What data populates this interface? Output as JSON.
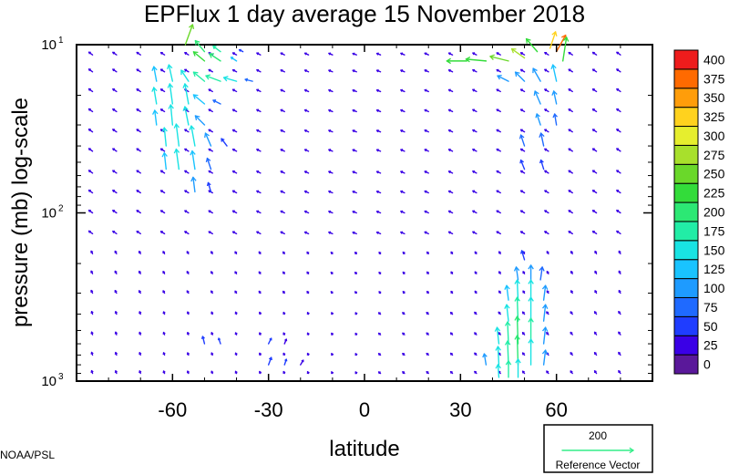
{
  "chart_data": {
    "type": "vector",
    "title": "EPFlux  1 day average  15 November 2018",
    "xlabel": "latitude",
    "ylabel": "pressure (mb)  log-scale",
    "xlim": [
      -90,
      90
    ],
    "ylim": [
      1000,
      10
    ],
    "yscale": "log",
    "x_ticks": [
      {
        "value": -60,
        "label": "-60"
      },
      {
        "value": -30,
        "label": "-30"
      },
      {
        "value": 0,
        "label": "0"
      },
      {
        "value": 30,
        "label": "30"
      },
      {
        "value": 60,
        "label": "60"
      }
    ],
    "y_ticks": [
      {
        "value": 10,
        "base": "10",
        "exp": "1"
      },
      {
        "value": 100,
        "base": "10",
        "exp": "2"
      },
      {
        "value": 1000,
        "base": "10",
        "exp": "3"
      }
    ],
    "colorbar": {
      "levels": [
        "0",
        "25",
        "50",
        "75",
        "100",
        "125",
        "150",
        "175",
        "200",
        "225",
        "250",
        "275",
        "300",
        "325",
        "350",
        "375",
        "400"
      ],
      "colors": [
        "#5a189a",
        "#3a00e6",
        "#1f3dff",
        "#1f6aff",
        "#1e9bff",
        "#19c3ff",
        "#19e3e3",
        "#22eda6",
        "#2ce874",
        "#33dc3a",
        "#6ad82a",
        "#a8e02c",
        "#e6ee2e",
        "#ffd21e",
        "#ff9d0a",
        "#ff6a00",
        "#ee1c1c"
      ]
    },
    "reference_vector": {
      "magnitude": "200",
      "label": "Reference Vector",
      "color": "#33ee88"
    },
    "grid": false,
    "vectors": [
      {
        "lat": -56,
        "p": 10,
        "u": 8,
        "v": 22,
        "mag": 250
      },
      {
        "lat": -50,
        "p": 11,
        "u": -10,
        "v": 12,
        "mag": 220
      },
      {
        "lat": -45,
        "p": 11,
        "u": -8,
        "v": 6,
        "mag": 190
      },
      {
        "lat": -38,
        "p": 11,
        "u": -4,
        "v": 2,
        "mag": 70
      },
      {
        "lat": -50,
        "p": 12.5,
        "u": -12,
        "v": 10,
        "mag": 240
      },
      {
        "lat": -45,
        "p": 12.5,
        "u": -12,
        "v": 8,
        "mag": 220
      },
      {
        "lat": -40,
        "p": 12.5,
        "u": -6,
        "v": 4,
        "mag": 130
      },
      {
        "lat": 32,
        "p": 12.5,
        "u": -22,
        "v": 0,
        "mag": 230
      },
      {
        "lat": 38,
        "p": 12.5,
        "u": -22,
        "v": 2,
        "mag": 240
      },
      {
        "lat": 45,
        "p": 12.5,
        "u": -20,
        "v": 5,
        "mag": 260
      },
      {
        "lat": 50,
        "p": 12,
        "u": -14,
        "v": 10,
        "mag": 280
      },
      {
        "lat": 54,
        "p": 11,
        "u": -12,
        "v": 14,
        "mag": 230
      },
      {
        "lat": 58,
        "p": 10.5,
        "u": 6,
        "v": 18,
        "mag": 330
      },
      {
        "lat": 60,
        "p": 11,
        "u": 10,
        "v": 18,
        "mag": 380
      },
      {
        "lat": 62,
        "p": 12.5,
        "u": 4,
        "v": 26,
        "mag": 240
      },
      {
        "lat": -65,
        "p": 16.5,
        "u": -3,
        "v": 16,
        "mag": 140
      },
      {
        "lat": -60,
        "p": 16.5,
        "u": -4,
        "v": 18,
        "mag": 150
      },
      {
        "lat": -55,
        "p": 16.5,
        "u": -8,
        "v": 12,
        "mag": 170
      },
      {
        "lat": -50,
        "p": 16.5,
        "u": -12,
        "v": 10,
        "mag": 190
      },
      {
        "lat": -45,
        "p": 16.5,
        "u": -16,
        "v": 6,
        "mag": 180
      },
      {
        "lat": -40,
        "p": 16.5,
        "u": -14,
        "v": 4,
        "mag": 150
      },
      {
        "lat": -35,
        "p": 16.5,
        "u": -8,
        "v": 2,
        "mag": 80
      },
      {
        "lat": 45,
        "p": 16.5,
        "u": -12,
        "v": 6,
        "mag": 100
      },
      {
        "lat": 50,
        "p": 16.5,
        "u": -10,
        "v": 10,
        "mag": 110
      },
      {
        "lat": 55,
        "p": 16.5,
        "u": -8,
        "v": 14,
        "mag": 120
      },
      {
        "lat": 60,
        "p": 16.5,
        "u": -4,
        "v": 18,
        "mag": 140
      },
      {
        "lat": -65,
        "p": 22.5,
        "u": -3,
        "v": 18,
        "mag": 150
      },
      {
        "lat": -60,
        "p": 22.5,
        "u": -3,
        "v": 22,
        "mag": 160
      },
      {
        "lat": -55,
        "p": 22.5,
        "u": -4,
        "v": 22,
        "mag": 170
      },
      {
        "lat": -50,
        "p": 22.5,
        "u": -12,
        "v": 10,
        "mag": 130
      },
      {
        "lat": -45,
        "p": 22.5,
        "u": -8,
        "v": 4,
        "mag": 90
      },
      {
        "lat": 55,
        "p": 22.5,
        "u": -6,
        "v": 14,
        "mag": 110
      },
      {
        "lat": 60,
        "p": 22.5,
        "u": -3,
        "v": 14,
        "mag": 100
      },
      {
        "lat": -65,
        "p": 30,
        "u": -2,
        "v": 16,
        "mag": 140
      },
      {
        "lat": -60,
        "p": 30,
        "u": -2,
        "v": 22,
        "mag": 160
      },
      {
        "lat": -55,
        "p": 30,
        "u": -4,
        "v": 20,
        "mag": 170
      },
      {
        "lat": -50,
        "p": 30,
        "u": -10,
        "v": 10,
        "mag": 120
      },
      {
        "lat": 55,
        "p": 30,
        "u": -4,
        "v": 12,
        "mag": 100
      },
      {
        "lat": 60,
        "p": 30,
        "u": -2,
        "v": 12,
        "mag": 90
      },
      {
        "lat": -62,
        "p": 40,
        "u": -2,
        "v": 20,
        "mag": 150
      },
      {
        "lat": -58,
        "p": 40,
        "u": -3,
        "v": 24,
        "mag": 170
      },
      {
        "lat": -53,
        "p": 40,
        "u": -4,
        "v": 22,
        "mag": 160
      },
      {
        "lat": -48,
        "p": 40,
        "u": -6,
        "v": 14,
        "mag": 110
      },
      {
        "lat": -43,
        "p": 40,
        "u": -6,
        "v": 8,
        "mag": 70
      },
      {
        "lat": 50,
        "p": 40,
        "u": -4,
        "v": 12,
        "mag": 90
      },
      {
        "lat": 56,
        "p": 40,
        "u": -3,
        "v": 14,
        "mag": 90
      },
      {
        "lat": -62,
        "p": 55,
        "u": -2,
        "v": 18,
        "mag": 130
      },
      {
        "lat": -58,
        "p": 55,
        "u": -3,
        "v": 22,
        "mag": 160
      },
      {
        "lat": -53,
        "p": 55,
        "u": -3,
        "v": 20,
        "mag": 140
      },
      {
        "lat": -48,
        "p": 55,
        "u": -4,
        "v": 12,
        "mag": 90
      },
      {
        "lat": 50,
        "p": 55,
        "u": -4,
        "v": 10,
        "mag": 70
      },
      {
        "lat": 56,
        "p": 55,
        "u": -3,
        "v": 10,
        "mag": 70
      },
      {
        "lat": -53,
        "p": 75,
        "u": -2,
        "v": 16,
        "mag": 100
      },
      {
        "lat": -48,
        "p": 75,
        "u": -3,
        "v": 10,
        "mag": 70
      },
      {
        "lat": 50,
        "p": 190,
        "u": -3,
        "v": 10,
        "mag": 60
      },
      {
        "lat": 48,
        "p": 250,
        "u": -2,
        "v": 14,
        "mag": 100
      },
      {
        "lat": 52,
        "p": 250,
        "u": 0,
        "v": 16,
        "mag": 110
      },
      {
        "lat": 55,
        "p": 250,
        "u": 2,
        "v": 14,
        "mag": 90
      },
      {
        "lat": 45,
        "p": 330,
        "u": -2,
        "v": 16,
        "mag": 130
      },
      {
        "lat": 48,
        "p": 330,
        "u": -1,
        "v": 22,
        "mag": 160
      },
      {
        "lat": 52,
        "p": 330,
        "u": 0,
        "v": 22,
        "mag": 150
      },
      {
        "lat": 56,
        "p": 330,
        "u": 2,
        "v": 16,
        "mag": 110
      },
      {
        "lat": 45,
        "p": 440,
        "u": -2,
        "v": 18,
        "mag": 150
      },
      {
        "lat": 48,
        "p": 440,
        "u": -1,
        "v": 26,
        "mag": 190
      },
      {
        "lat": 52,
        "p": 440,
        "u": 0,
        "v": 26,
        "mag": 170
      },
      {
        "lat": 56,
        "p": 440,
        "u": 2,
        "v": 18,
        "mag": 120
      },
      {
        "lat": 42,
        "p": 600,
        "u": -2,
        "v": 18,
        "mag": 150
      },
      {
        "lat": 45,
        "p": 600,
        "u": -1,
        "v": 24,
        "mag": 180
      },
      {
        "lat": 48,
        "p": 600,
        "u": -1,
        "v": 30,
        "mag": 210
      },
      {
        "lat": 52,
        "p": 600,
        "u": 0,
        "v": 28,
        "mag": 180
      },
      {
        "lat": 56,
        "p": 600,
        "u": 2,
        "v": 18,
        "mag": 120
      },
      {
        "lat": 38,
        "p": 800,
        "u": -2,
        "v": 12,
        "mag": 120
      },
      {
        "lat": 42,
        "p": 800,
        "u": -1,
        "v": 20,
        "mag": 160
      },
      {
        "lat": 45,
        "p": 800,
        "u": -1,
        "v": 26,
        "mag": 190
      },
      {
        "lat": 48,
        "p": 800,
        "u": -1,
        "v": 32,
        "mag": 210
      },
      {
        "lat": 52,
        "p": 800,
        "u": 0,
        "v": 28,
        "mag": 170
      },
      {
        "lat": 56,
        "p": 800,
        "u": 2,
        "v": 16,
        "mag": 110
      },
      {
        "lat": 42,
        "p": 950,
        "u": -1,
        "v": 14,
        "mag": 160
      },
      {
        "lat": 45,
        "p": 950,
        "u": 0,
        "v": 18,
        "mag": 180
      },
      {
        "lat": 48,
        "p": 950,
        "u": 0,
        "v": 20,
        "mag": 170
      },
      {
        "lat": -30,
        "p": 800,
        "u": 3,
        "v": 8,
        "mag": 60
      },
      {
        "lat": -25,
        "p": 800,
        "u": 2,
        "v": 6,
        "mag": 50
      },
      {
        "lat": -20,
        "p": 800,
        "u": 3,
        "v": 5,
        "mag": 40
      },
      {
        "lat": -30,
        "p": 600,
        "u": 3,
        "v": 6,
        "mag": 50
      },
      {
        "lat": -25,
        "p": 600,
        "u": 2,
        "v": 5,
        "mag": 40
      },
      {
        "lat": -50,
        "p": 600,
        "u": -2,
        "v": 8,
        "mag": 60
      },
      {
        "lat": -45,
        "p": 600,
        "u": -2,
        "v": 6,
        "mag": 50
      }
    ]
  },
  "footer": {
    "credit": "NOAA/PSL"
  }
}
